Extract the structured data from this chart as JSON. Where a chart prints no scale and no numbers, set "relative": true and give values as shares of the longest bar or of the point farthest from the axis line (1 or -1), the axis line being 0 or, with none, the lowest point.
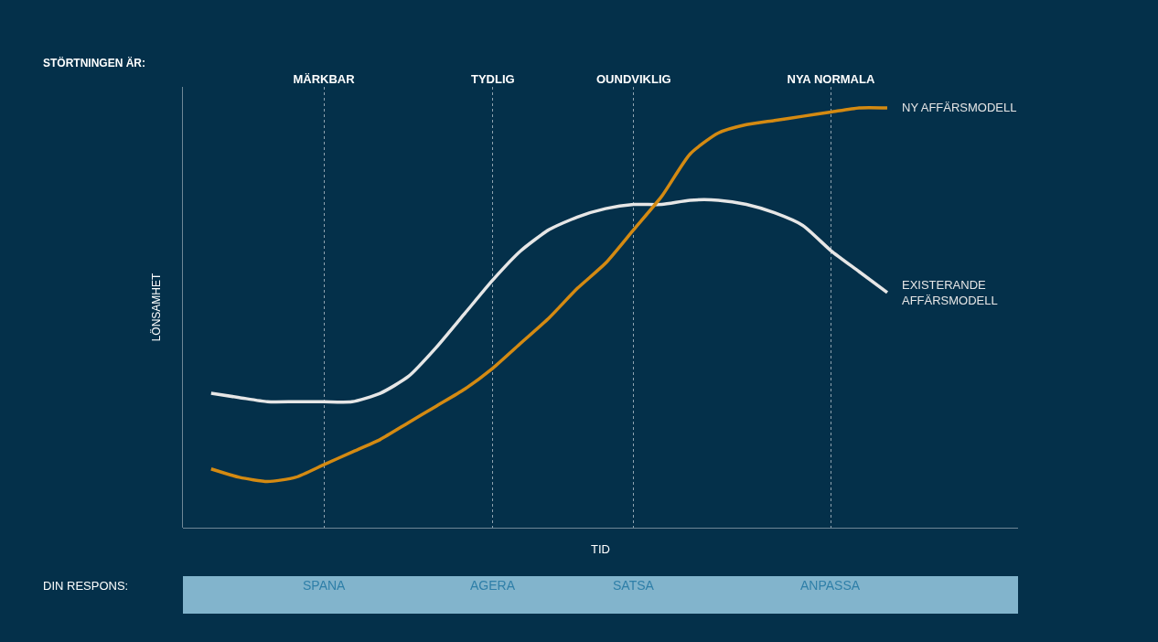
{
  "chart_data": {
    "type": "line",
    "relative": true,
    "xlabel": "TID",
    "ylabel": "LÖNSAMHET",
    "categories": [
      null,
      null,
      null,
      null,
      null,
      "MÄRKBAR",
      null,
      null,
      null,
      null,
      null,
      "TYDLIG",
      null,
      null,
      null,
      null,
      "OUNDVIKLIG",
      null,
      null,
      null,
      null,
      null,
      null,
      "NYA NORMALA",
      null,
      null,
      null,
      null,
      null
    ],
    "series": [
      {
        "name": "EXISTERANDE AFFÄRSMODELL",
        "color": "#e6e6e6",
        "values": [
          null,
          0.32,
          0.31,
          0.3,
          0.3,
          0.3,
          0.3,
          0.32,
          0.36,
          0.43,
          0.51,
          0.59,
          0.66,
          0.71,
          0.74,
          0.76,
          0.77,
          0.77,
          0.78,
          0.78,
          0.77,
          0.75,
          0.72,
          0.66,
          0.61,
          0.56,
          null,
          null,
          null
        ]
      },
      {
        "name": "NY AFFÄRSMODELL",
        "color": "#d48a12",
        "values": [
          null,
          0.14,
          0.12,
          0.11,
          0.12,
          0.15,
          0.18,
          0.21,
          0.25,
          0.29,
          0.33,
          0.38,
          0.44,
          0.5,
          0.57,
          0.63,
          0.71,
          0.79,
          0.89,
          0.94,
          0.96,
          0.97,
          0.98,
          0.99,
          1.0,
          1.0,
          null,
          null,
          null
        ]
      }
    ],
    "annotations": [
      "STÖRTNINGEN ÄR:",
      "DIN RESPONS:",
      "SPANA",
      "AGERA",
      "SATSA",
      "ANPASSA"
    ],
    "grid": "x",
    "legend": false,
    "line_style": "solid",
    "marker": "none"
  }
}
